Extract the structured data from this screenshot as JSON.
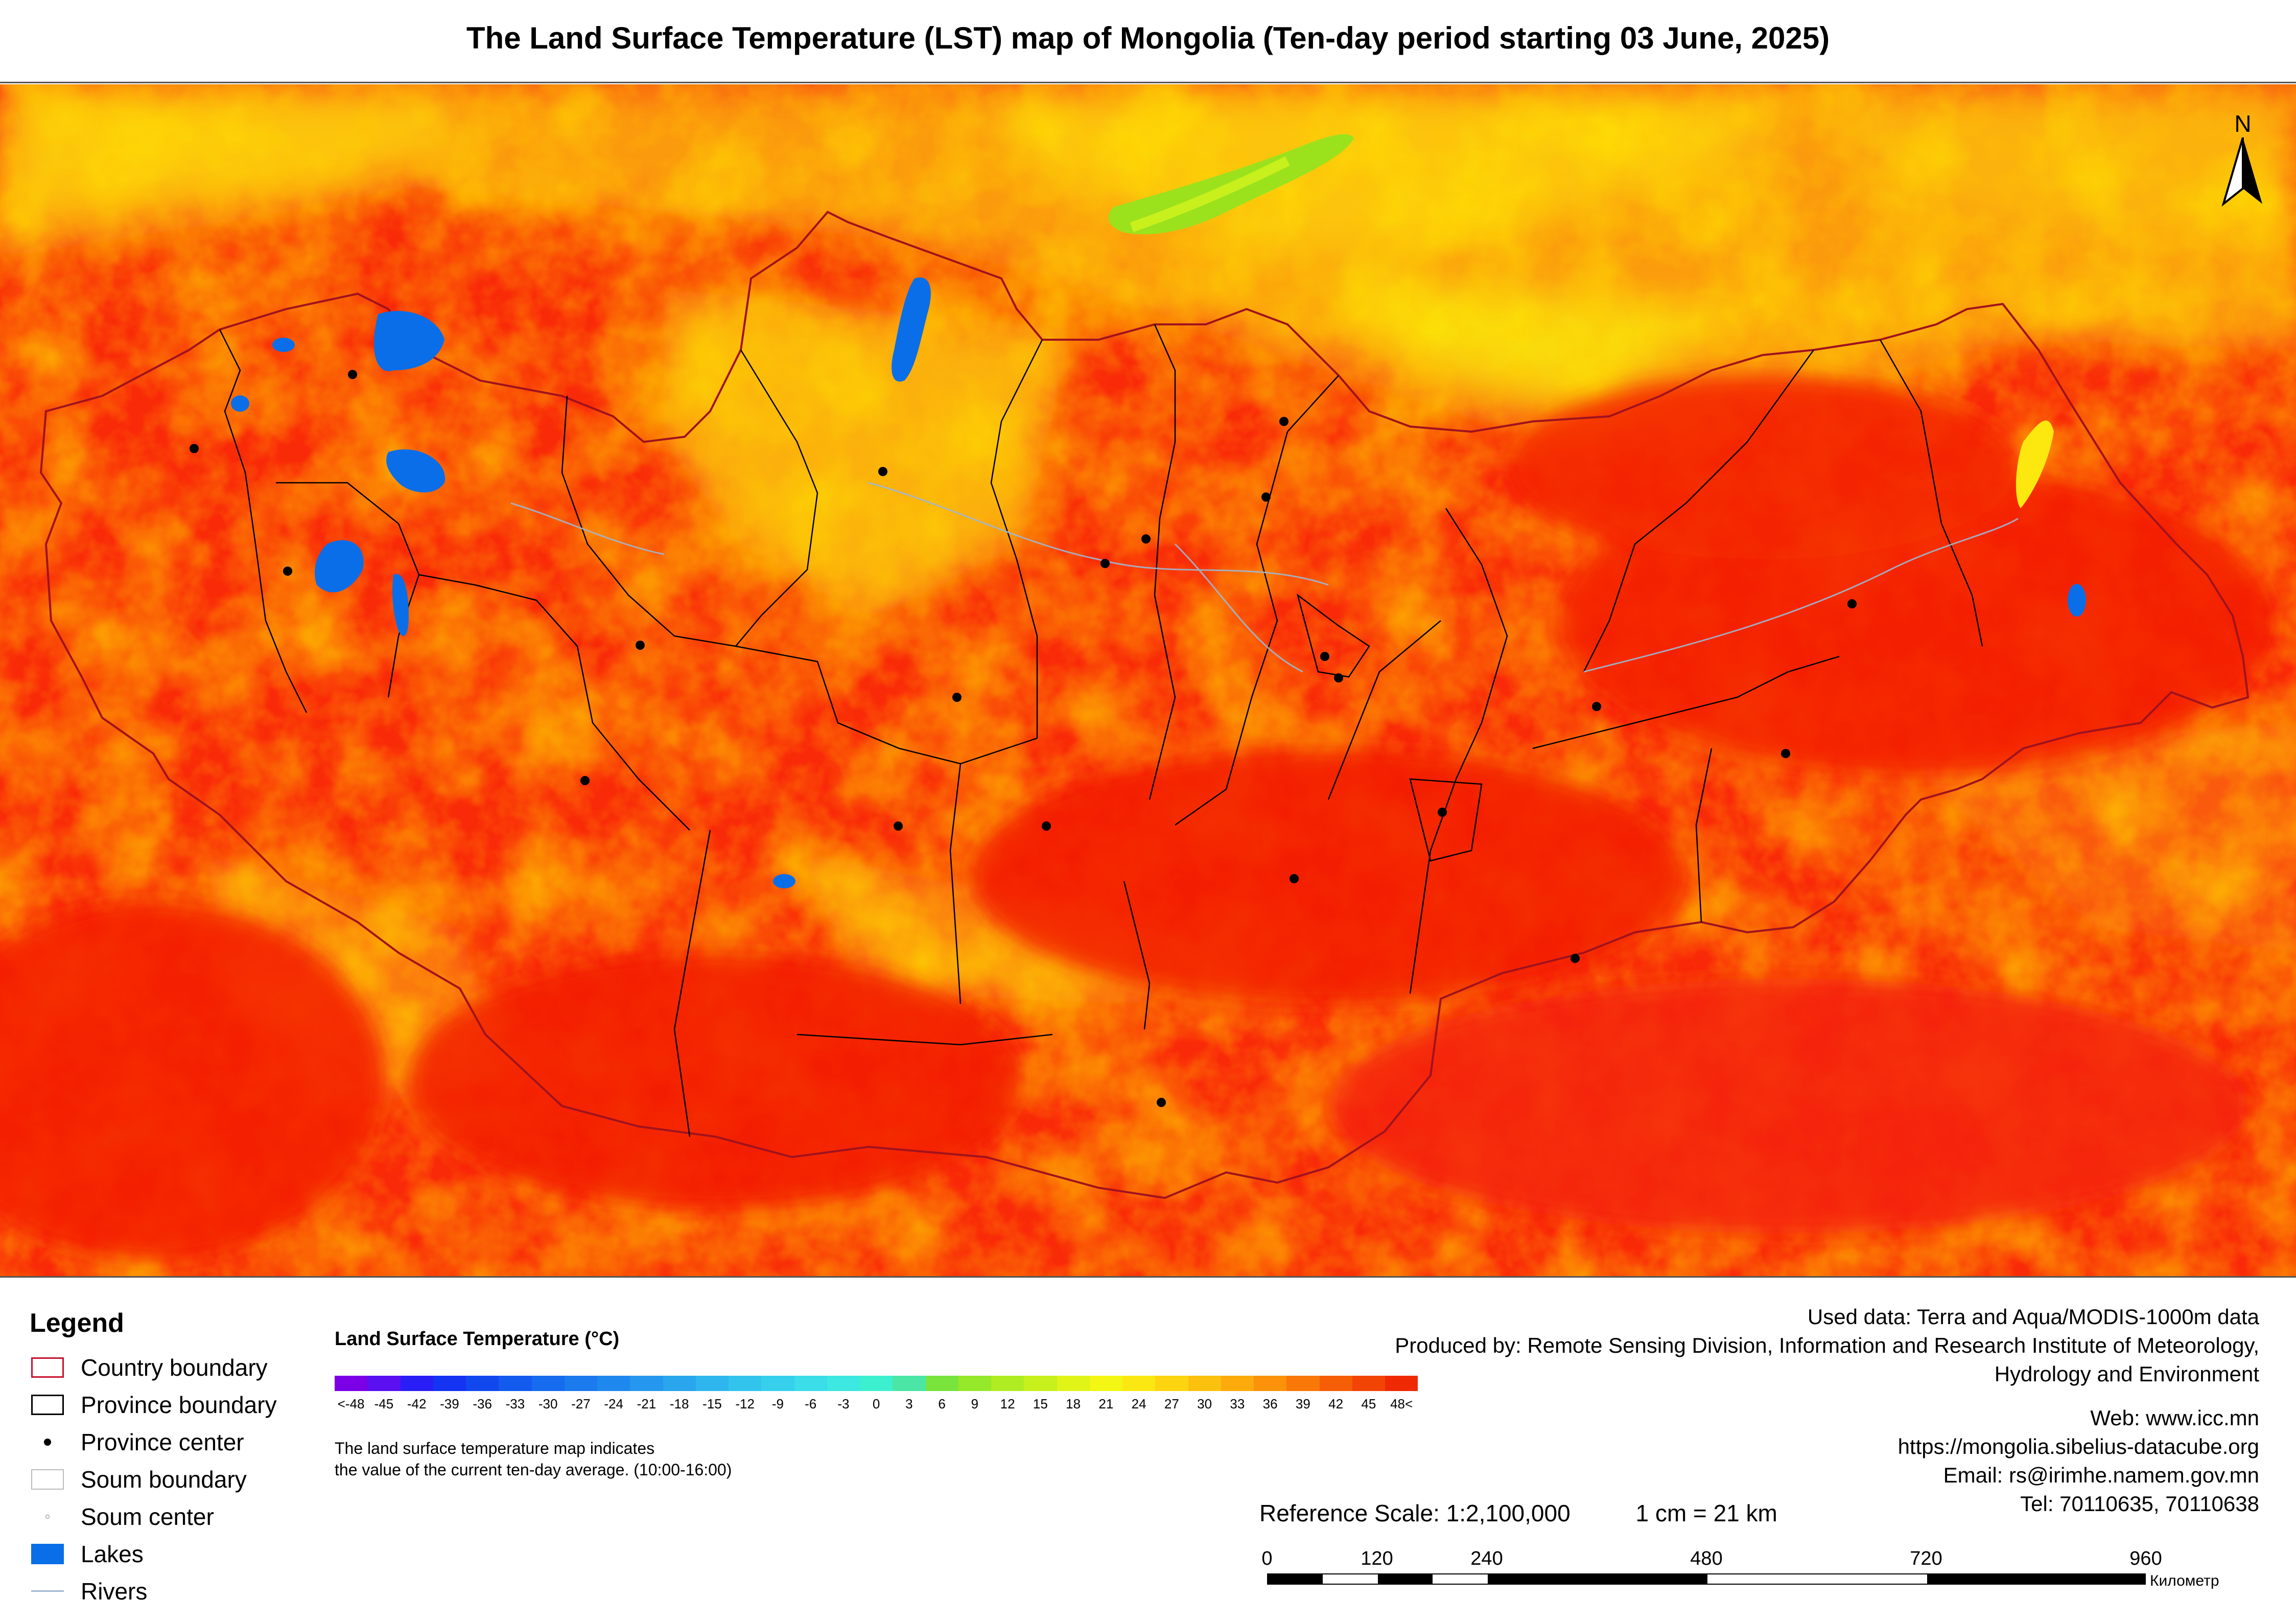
{
  "title": "The Land Surface Temperature (LST) map of Mongolia (Ten-day period starting 03 June, 2025)",
  "north_arrow": {
    "label": "N",
    "icon": "north-arrow-icon"
  },
  "legend": {
    "title": "Legend",
    "items": [
      {
        "label": "Country boundary",
        "icon": "country-boundary-icon",
        "color": "#c8102e"
      },
      {
        "label": "Province boundary",
        "icon": "province-boundary-icon",
        "color": "#000000"
      },
      {
        "label": "Province center",
        "icon": "province-center-icon",
        "color": "#000000"
      },
      {
        "label": "Soum boundary",
        "icon": "soum-boundary-icon",
        "color": "#bbbbbb"
      },
      {
        "label": "Soum center",
        "icon": "soum-center-icon",
        "color": "#888888"
      },
      {
        "label": "Lakes",
        "icon": "lake-icon",
        "color": "#0a6ee8"
      },
      {
        "label": "Rivers",
        "icon": "river-icon",
        "color": "#9fb7d0"
      }
    ]
  },
  "colorbar": {
    "title": "Land Surface Temperature (°C)",
    "ticks": [
      "<-48",
      "-45",
      "-42",
      "-39",
      "-36",
      "-33",
      "-30",
      "-27",
      "-24",
      "-21",
      "-18",
      "-15",
      "-12",
      "-9",
      "-6",
      "-3",
      "0",
      "3",
      "6",
      "9",
      "12",
      "15",
      "18",
      "21",
      "24",
      "27",
      "30",
      "33",
      "36",
      "39",
      "42",
      "45",
      "48<"
    ],
    "colors": [
      "#7b00e6",
      "#5a10f0",
      "#2a1ef6",
      "#1433f2",
      "#1148ee",
      "#125bee",
      "#166bee",
      "#1a7aee",
      "#1f88ee",
      "#2597ee",
      "#2aa6ee",
      "#2fb6ee",
      "#33c4ee",
      "#36d0ec",
      "#3adde8",
      "#3ce8e0",
      "#3cf0cf",
      "#4be6a6",
      "#79e43c",
      "#96e82a",
      "#b0ec22",
      "#c8f01c",
      "#e0f418",
      "#f4f614",
      "#fbe812",
      "#fcd410",
      "#fcc00e",
      "#fcaa0c",
      "#fb920a",
      "#f97808",
      "#f65e06",
      "#f24404",
      "#ef2a02"
    ],
    "note_line1": "The land surface temperature map indicates",
    "note_line2": "the value of the current ten-day average. (10:00-16:00)"
  },
  "info": {
    "used_data": "Used data: Terra and Aqua/MODIS-1000m data",
    "produced_line1": "Produced by: Remote Sensing Division, Information and Research Institute of Meteorology,",
    "produced_line2": "Hydrology and Environment",
    "web1": "Web: www.icc.mn",
    "web2": "https://mongolia.sibelius-datacube.org",
    "email": "Email: rs@irimhe.namem.gov.mn",
    "tel": "Tel: 70110635, 70110638"
  },
  "scale": {
    "reference": "Reference Scale: 1:2,100,000",
    "cm": "1 cm = 21 km",
    "labels": [
      "0",
      "120",
      "240",
      "480",
      "720",
      "960"
    ],
    "unit": "Километр"
  }
}
